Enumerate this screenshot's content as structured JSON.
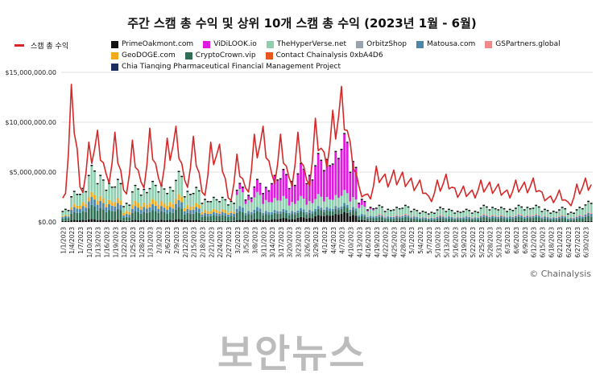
{
  "title": "주간 스캠 총 수익 및 상위 10개 스캠 총 수익 (2023년 1월 - 6월)",
  "credit": "© Chainalysis",
  "watermark": "보안뉴스",
  "chart_data": {
    "type": "bar",
    "title": "주간 스캠 총 수익 및 상위 10개 스캠 총 수익 (2023년 1월 - 6월)",
    "ylim": [
      0,
      15000000
    ],
    "yticks": [
      "$15,000,000.00",
      "$10,000,000.00",
      "$5,000,000.00",
      "$0.00"
    ],
    "ytick_values": [
      15000000,
      10000000,
      5000000,
      0
    ],
    "legend_position": "top",
    "line_series": {
      "name": "스캠 총 수익",
      "color": "#d62828"
    },
    "series": [
      {
        "name": "PrimeOakmont.com",
        "color": "#111111"
      },
      {
        "name": "ViDiLOOK.io",
        "color": "#e01be0"
      },
      {
        "name": "TheHyperVerse.net",
        "color": "#8fcfb0"
      },
      {
        "name": "OrbitzShop",
        "color": "#9aa3ad"
      },
      {
        "name": "Matousa.com",
        "color": "#4c86a8"
      },
      {
        "name": "GSPartners.global",
        "color": "#f08a8a"
      },
      {
        "name": "GeoDOGE.com",
        "color": "#f2a91c"
      },
      {
        "name": "CryptoCrown.vip",
        "color": "#2f6e55"
      },
      {
        "name": "Contact Chainalysis 0xbA4D6",
        "color": "#e8551f"
      },
      {
        "name": "Chia Tianqing Pharmaceutical Financial Management Project",
        "color": "#1f2d5c"
      }
    ],
    "categories": [
      "1/1/2023",
      "1/4/2023",
      "1/7/2023",
      "1/10/2023",
      "1/13/2023",
      "1/16/2023",
      "1/19/2023",
      "1/22/2023",
      "1/25/2023",
      "1/28/2023",
      "1/31/2023",
      "2/3/2023",
      "2/6/2023",
      "2/9/2023",
      "2/12/2023",
      "2/15/2023",
      "2/18/2023",
      "2/21/2023",
      "2/24/2023",
      "2/27/2023",
      "3/2/2023",
      "3/5/2023",
      "3/8/2023",
      "3/11/2023",
      "3/14/2023",
      "3/17/2023",
      "3/20/2023",
      "3/23/2023",
      "3/26/2023",
      "3/29/2023",
      "4/1/2023",
      "4/4/2023",
      "4/7/2023",
      "4/10/2023",
      "4/13/2023",
      "4/16/2023",
      "4/19/2023",
      "4/22/2023",
      "4/25/2023",
      "4/28/2023",
      "5/1/2023",
      "5/4/2023",
      "5/7/2023",
      "5/10/2023",
      "5/13/2023",
      "5/16/2023",
      "5/19/2023",
      "5/22/2023",
      "5/25/2023",
      "5/28/2023",
      "5/31/2023",
      "6/3/2023",
      "6/6/2023",
      "6/9/2023",
      "6/12/2023",
      "6/15/2023",
      "6/18/2023",
      "6/21/2023",
      "6/24/2023",
      "6/27/2023",
      "6/30/2023"
    ],
    "total_revenue": [
      2400000,
      13800000,
      3500000,
      8000000,
      9200000,
      4800000,
      9000000,
      3200000,
      8200000,
      4000000,
      9400000,
      4400000,
      8400000,
      9600000,
      4200000,
      8600000,
      3000000,
      8000000,
      7800000,
      2400000,
      6800000,
      3400000,
      8800000,
      9600000,
      4800000,
      8800000,
      4400000,
      9000000,
      4200000,
      10400000,
      7000000,
      11200000,
      13600000,
      8000000,
      3600000,
      2800000,
      5600000,
      4800000,
      5200000,
      5000000,
      4400000,
      4200000,
      2600000,
      4200000,
      4800000,
      3400000,
      3600000,
      3200000,
      4200000,
      4000000,
      3800000,
      3200000,
      4200000,
      4000000,
      4400000,
      3000000,
      2600000,
      3200000,
      2000000,
      3800000,
      4400000
    ],
    "top10_revenue": [
      1200000,
      3000000,
      3300000,
      5600000,
      4600000,
      3800000,
      4200000,
      1800000,
      3600000,
      3200000,
      4000000,
      3600000,
      3400000,
      5000000,
      3000000,
      3400000,
      2200000,
      2400000,
      2400000,
      2000000,
      3800000,
      2600000,
      4200000,
      3400000,
      4600000,
      5200000,
      4000000,
      5800000,
      4600000,
      6800000,
      6200000,
      7000000,
      8800000,
      6000000,
      2200000,
      1400000,
      1600000,
      1200000,
      1400000,
      1600000,
      1200000,
      1000000,
      900000,
      1400000,
      1200000,
      1000000,
      1200000,
      1000000,
      1600000,
      1400000,
      1400000,
      1200000,
      1600000,
      1400000,
      1600000,
      1200000,
      1000000,
      1400000,
      900000,
      1400000,
      2000000
    ],
    "top10_breakdown": [
      {
        "week": "1/1/2023",
        "TheHyperVerse.net": 500000,
        "CryptoCrown.vip": 300000,
        "Matousa.com": 200000,
        "GeoDOGE.com": 100000,
        "PrimeOakmont.com": 100000
      },
      {
        "week": "1/4/2023",
        "TheHyperVerse.net": 1200000,
        "CryptoCrown.vip": 800000,
        "Matousa.com": 500000,
        "GeoDOGE.com": 300000,
        "PrimeOakmont.com": 200000
      },
      {
        "week": "1/7/2023",
        "TheHyperVerse.net": 1300000,
        "CryptoCrown.vip": 900000,
        "Matousa.com": 500000,
        "GeoDOGE.com": 400000,
        "PrimeOakmont.com": 200000
      },
      {
        "week": "1/10/2023",
        "TheHyperVerse.net": 2600000,
        "CryptoCrown.vip": 1400000,
        "Matousa.com": 800000,
        "GeoDOGE.com": 500000,
        "PrimeOakmont.com": 300000
      },
      {
        "week": "1/13/2023",
        "TheHyperVerse.net": 2000000,
        "CryptoCrown.vip": 1200000,
        "Matousa.com": 700000,
        "GeoDOGE.com": 500000,
        "PrimeOakmont.com": 200000
      },
      {
        "week": "1/16/2023",
        "TheHyperVerse.net": 1600000,
        "CryptoCrown.vip": 1000000,
        "Matousa.com": 600000,
        "GeoDOGE.com": 400000,
        "PrimeOakmont.com": 200000
      },
      {
        "week": "1/19/2023",
        "TheHyperVerse.net": 1800000,
        "CryptoCrown.vip": 1100000,
        "Matousa.com": 600000,
        "GeoDOGE.com": 500000,
        "PrimeOakmont.com": 200000
      },
      {
        "week": "1/22/2023",
        "TheHyperVerse.net": 700000,
        "CryptoCrown.vip": 400000,
        "Matousa.com": 300000,
        "GeoDOGE.com": 300000,
        "PrimeOakmont.com": 100000
      },
      {
        "week": "1/25/2023",
        "TheHyperVerse.net": 1500000,
        "CryptoCrown.vip": 900000,
        "Matousa.com": 500000,
        "GeoDOGE.com": 500000,
        "PrimeOakmont.com": 200000
      },
      {
        "week": "1/28/2023",
        "TheHyperVerse.net": 1300000,
        "CryptoCrown.vip": 800000,
        "Matousa.com": 500000,
        "GeoDOGE.com": 400000,
        "PrimeOakmont.com": 200000
      },
      {
        "week": "1/31/2023",
        "TheHyperVerse.net": 1700000,
        "CryptoCrown.vip": 1000000,
        "Matousa.com": 600000,
        "GeoDOGE.com": 500000,
        "PrimeOakmont.com": 200000
      },
      {
        "week": "2/3/2023",
        "TheHyperVerse.net": 1500000,
        "CryptoCrown.vip": 900000,
        "Matousa.com": 500000,
        "GeoDOGE.com": 500000,
        "PrimeOakmont.com": 200000
      },
      {
        "week": "2/6/2023",
        "TheHyperVerse.net": 1400000,
        "CryptoCrown.vip": 800000,
        "Matousa.com": 500000,
        "GeoDOGE.com": 500000,
        "PrimeOakmont.com": 200000
      },
      {
        "week": "2/9/2023",
        "TheHyperVerse.net": 2200000,
        "CryptoCrown.vip": 1200000,
        "Matousa.com": 700000,
        "GeoDOGE.com": 600000,
        "PrimeOakmont.com": 300000
      },
      {
        "week": "2/12/2023",
        "TheHyperVerse.net": 1300000,
        "CryptoCrown.vip": 700000,
        "Matousa.com": 400000,
        "GeoDOGE.com": 400000,
        "PrimeOakmont.com": 200000
      },
      {
        "week": "2/15/2023",
        "TheHyperVerse.net": 1500000,
        "CryptoCrown.vip": 800000,
        "Matousa.com": 500000,
        "GeoDOGE.com": 400000,
        "PrimeOakmont.com": 200000
      },
      {
        "week": "2/18/2023",
        "TheHyperVerse.net": 1000000,
        "CryptoCrown.vip": 500000,
        "Matousa.com": 300000,
        "GeoDOGE.com": 300000,
        "PrimeOakmont.com": 100000
      },
      {
        "week": "2/21/2023",
        "TheHyperVerse.net": 1100000,
        "CryptoCrown.vip": 600000,
        "Matousa.com": 300000,
        "GeoDOGE.com": 300000,
        "PrimeOakmont.com": 100000
      },
      {
        "week": "2/24/2023",
        "TheHyperVerse.net": 1100000,
        "CryptoCrown.vip": 600000,
        "Matousa.com": 300000,
        "GeoDOGE.com": 300000,
        "PrimeOakmont.com": 100000
      },
      {
        "week": "2/27/2023",
        "TheHyperVerse.net": 900000,
        "CryptoCrown.vip": 500000,
        "Matousa.com": 300000,
        "GeoDOGE.com": 200000,
        "PrimeOakmont.com": 100000
      },
      {
        "week": "3/2/2023",
        "TheHyperVerse.net": 1700000,
        "CryptoCrown.vip": 900000,
        "Matousa.com": 500000,
        "ViDiLOOK.io": 500000,
        "PrimeOakmont.com": 200000
      },
      {
        "week": "3/5/2023",
        "TheHyperVerse.net": 1100000,
        "CryptoCrown.vip": 600000,
        "Matousa.com": 300000,
        "ViDiLOOK.io": 400000,
        "PrimeOakmont.com": 200000
      },
      {
        "week": "3/8/2023",
        "TheHyperVerse.net": 1500000,
        "CryptoCrown.vip": 800000,
        "Matousa.com": 400000,
        "ViDiLOOK.io": 1200000,
        "PrimeOakmont.com": 300000
      },
      {
        "week": "3/11/2023",
        "TheHyperVerse.net": 1100000,
        "CryptoCrown.vip": 600000,
        "Matousa.com": 300000,
        "ViDiLOOK.io": 1200000,
        "PrimeOakmont.com": 200000
      },
      {
        "week": "3/14/2023",
        "TheHyperVerse.net": 1200000,
        "CryptoCrown.vip": 600000,
        "Matousa.com": 300000,
        "ViDiLOOK.io": 2200000,
        "PrimeOakmont.com": 300000
      },
      {
        "week": "3/17/2023",
        "TheHyperVerse.net": 1300000,
        "CryptoCrown.vip": 600000,
        "Matousa.com": 300000,
        "ViDiLOOK.io": 2600000,
        "PrimeOakmont.com": 400000
      },
      {
        "week": "3/20/2023",
        "TheHyperVerse.net": 900000,
        "CryptoCrown.vip": 500000,
        "Matousa.com": 300000,
        "ViDiLOOK.io": 2000000,
        "PrimeOakmont.com": 300000
      },
      {
        "week": "3/23/2023",
        "TheHyperVerse.net": 1200000,
        "CryptoCrown.vip": 600000,
        "Matousa.com": 300000,
        "ViDiLOOK.io": 3200000,
        "PrimeOakmont.com": 500000
      },
      {
        "week": "3/26/2023",
        "TheHyperVerse.net": 900000,
        "CryptoCrown.vip": 500000,
        "Matousa.com": 300000,
        "ViDiLOOK.io": 2500000,
        "PrimeOakmont.com": 400000
      },
      {
        "week": "3/29/2023",
        "TheHyperVerse.net": 1200000,
        "CryptoCrown.vip": 600000,
        "Matousa.com": 300000,
        "ViDiLOOK.io": 4000000,
        "PrimeOakmont.com": 700000
      },
      {
        "week": "4/1/2023",
        "TheHyperVerse.net": 1000000,
        "CryptoCrown.vip": 500000,
        "Matousa.com": 300000,
        "ViDiLOOK.io": 3700000,
        "PrimeOakmont.com": 700000
      },
      {
        "week": "4/4/2023",
        "TheHyperVerse.net": 1100000,
        "CryptoCrown.vip": 500000,
        "Matousa.com": 300000,
        "ViDiLOOK.io": 4300000,
        "PrimeOakmont.com": 800000
      },
      {
        "week": "4/7/2023",
        "TheHyperVerse.net": 1300000,
        "CryptoCrown.vip": 600000,
        "Matousa.com": 300000,
        "ViDiLOOK.io": 5600000,
        "PrimeOakmont.com": 1000000
      },
      {
        "week": "4/10/2023",
        "TheHyperVerse.net": 1000000,
        "CryptoCrown.vip": 500000,
        "Matousa.com": 300000,
        "ViDiLOOK.io": 3500000,
        "PrimeOakmont.com": 700000
      },
      {
        "week": "4/13/2023",
        "TheHyperVerse.net": 900000,
        "CryptoCrown.vip": 400000,
        "Matousa.com": 200000,
        "ViDiLOOK.io": 500000,
        "PrimeOakmont.com": 200000
      },
      {
        "week": "4/16/2023",
        "TheHyperVerse.net": 700000,
        "CryptoCrown.vip": 300000,
        "Matousa.com": 200000,
        "ViDiLOOK.io": 100000,
        "PrimeOakmont.com": 100000
      },
      {
        "week": "4/19/2023",
        "TheHyperVerse.net": 800000,
        "CryptoCrown.vip": 400000,
        "Matousa.com": 200000,
        "GSPartners.global": 100000,
        "PrimeOakmont.com": 100000
      },
      {
        "week": "4/22/2023",
        "TheHyperVerse.net": 600000,
        "CryptoCrown.vip": 300000,
        "Matousa.com": 200000,
        "GSPartners.global": 50000,
        "PrimeOakmont.com": 50000
      },
      {
        "week": "4/25/2023",
        "TheHyperVerse.net": 700000,
        "CryptoCrown.vip": 300000,
        "Matousa.com": 200000,
        "GSPartners.global": 100000,
        "PrimeOakmont.com": 100000
      },
      {
        "week": "4/28/2023",
        "TheHyperVerse.net": 800000,
        "CryptoCrown.vip": 400000,
        "Matousa.com": 200000,
        "GSPartners.global": 100000,
        "PrimeOakmont.com": 100000
      },
      {
        "week": "5/1/2023",
        "TheHyperVerse.net": 600000,
        "CryptoCrown.vip": 300000,
        "Matousa.com": 200000,
        "GSPartners.global": 50000,
        "PrimeOakmont.com": 50000
      },
      {
        "week": "5/4/2023",
        "TheHyperVerse.net": 500000,
        "CryptoCrown.vip": 250000,
        "Matousa.com": 150000,
        "GSPartners.global": 50000,
        "PrimeOakmont.com": 50000
      },
      {
        "week": "5/7/2023",
        "TheHyperVerse.net": 450000,
        "CryptoCrown.vip": 200000,
        "Matousa.com": 150000,
        "GSPartners.global": 50000,
        "PrimeOakmont.com": 50000
      },
      {
        "week": "5/10/2023",
        "TheHyperVerse.net": 700000,
        "CryptoCrown.vip": 300000,
        "Matousa.com": 200000,
        "GSPartners.global": 100000,
        "PrimeOakmont.com": 100000
      },
      {
        "week": "5/13/2023",
        "TheHyperVerse.net": 600000,
        "CryptoCrown.vip": 300000,
        "Matousa.com": 200000,
        "GSPartners.global": 50000,
        "PrimeOakmont.com": 50000
      },
      {
        "week": "5/16/2023",
        "TheHyperVerse.net": 500000,
        "CryptoCrown.vip": 250000,
        "Matousa.com": 150000,
        "GSPartners.global": 50000,
        "PrimeOakmont.com": 50000
      },
      {
        "week": "5/19/2023",
        "TheHyperVerse.net": 600000,
        "CryptoCrown.vip": 300000,
        "Matousa.com": 200000,
        "GSPartners.global": 50000,
        "PrimeOakmont.com": 50000
      },
      {
        "week": "5/22/2023",
        "TheHyperVerse.net": 500000,
        "CryptoCrown.vip": 250000,
        "Matousa.com": 150000,
        "GSPartners.global": 50000,
        "PrimeOakmont.com": 50000
      },
      {
        "week": "5/25/2023",
        "TheHyperVerse.net": 800000,
        "CryptoCrown.vip": 400000,
        "Matousa.com": 200000,
        "GSPartners.global": 100000,
        "PrimeOakmont.com": 100000
      },
      {
        "week": "5/28/2023",
        "TheHyperVerse.net": 700000,
        "CryptoCrown.vip": 350000,
        "Matousa.com": 200000,
        "GSPartners.global": 100000,
        "PrimeOakmont.com": 50000
      },
      {
        "week": "5/31/2023",
        "TheHyperVerse.net": 700000,
        "CryptoCrown.vip": 350000,
        "Matousa.com": 200000,
        "GSPartners.global": 100000,
        "PrimeOakmont.com": 50000
      },
      {
        "week": "6/3/2023",
        "TheHyperVerse.net": 600000,
        "CryptoCrown.vip": 300000,
        "Matousa.com": 200000,
        "GSPartners.global": 50000,
        "PrimeOakmont.com": 50000
      },
      {
        "week": "6/6/2023",
        "TheHyperVerse.net": 800000,
        "CryptoCrown.vip": 400000,
        "Matousa.com": 200000,
        "GSPartners.global": 100000,
        "PrimeOakmont.com": 100000
      },
      {
        "week": "6/9/2023",
        "TheHyperVerse.net": 700000,
        "CryptoCrown.vip": 350000,
        "Matousa.com": 200000,
        "GSPartners.global": 100000,
        "PrimeOakmont.com": 50000
      },
      {
        "week": "6/12/2023",
        "TheHyperVerse.net": 800000,
        "CryptoCrown.vip": 400000,
        "Matousa.com": 200000,
        "GSPartners.global": 100000,
        "PrimeOakmont.com": 100000
      },
      {
        "week": "6/15/2023",
        "TheHyperVerse.net": 600000,
        "CryptoCrown.vip": 300000,
        "Matousa.com": 200000,
        "GSPartners.global": 50000,
        "PrimeOakmont.com": 50000
      },
      {
        "week": "6/18/2023",
        "TheHyperVerse.net": 500000,
        "CryptoCrown.vip": 250000,
        "Matousa.com": 150000,
        "GSPartners.global": 50000,
        "PrimeOakmont.com": 50000
      },
      {
        "week": "6/21/2023",
        "TheHyperVerse.net": 700000,
        "CryptoCrown.vip": 350000,
        "Matousa.com": 200000,
        "GSPartners.global": 100000,
        "PrimeOakmont.com": 50000
      },
      {
        "week": "6/24/2023",
        "TheHyperVerse.net": 450000,
        "CryptoCrown.vip": 200000,
        "Matousa.com": 150000,
        "GSPartners.global": 50000,
        "PrimeOakmont.com": 50000
      },
      {
        "week": "6/27/2023",
        "TheHyperVerse.net": 700000,
        "CryptoCrown.vip": 350000,
        "Matousa.com": 200000,
        "GSPartners.global": 100000,
        "PrimeOakmont.com": 50000
      },
      {
        "week": "6/30/2023",
        "TheHyperVerse.net": 1000000,
        "CryptoCrown.vip": 500000,
        "Matousa.com": 300000,
        "GSPartners.global": 100000,
        "PrimeOakmont.com": 100000
      }
    ]
  }
}
